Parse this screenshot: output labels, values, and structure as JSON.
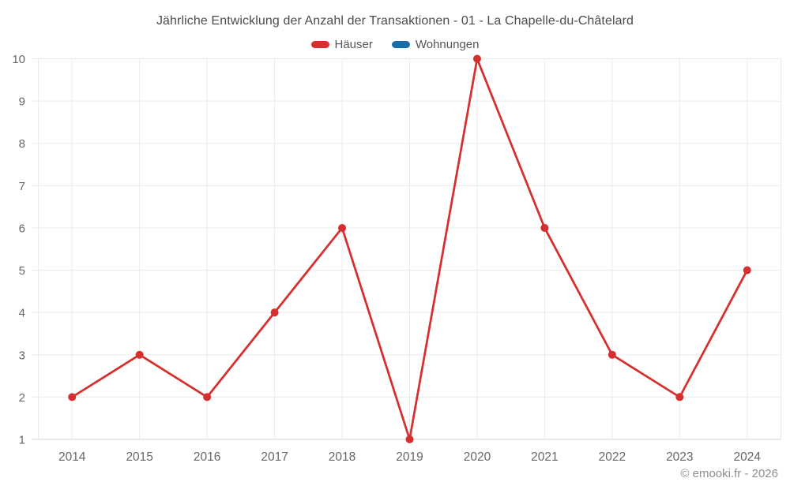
{
  "header": {
    "title": "Jährliche Entwicklung der Anzahl der Transaktionen - 01 - La Chapelle-du-Châtelard"
  },
  "legend": {
    "items": [
      {
        "label": "Häuser",
        "color": "#d62f2f"
      },
      {
        "label": "Wohnungen",
        "color": "#1a6ea8"
      }
    ]
  },
  "footer": {
    "text": "© emooki.fr - 2026"
  },
  "chart_data": {
    "type": "line",
    "title": "Jährliche Entwicklung der Anzahl der Transaktionen - 01 - La Chapelle-du-Châtelard",
    "categories": [
      "2014",
      "2015",
      "2016",
      "2017",
      "2018",
      "2019",
      "2020",
      "2021",
      "2022",
      "2023",
      "2024"
    ],
    "series": [
      {
        "name": "Häuser",
        "color": "#d62f2f",
        "values": [
          2,
          3,
          2,
          4,
          6,
          1,
          10,
          6,
          3,
          2,
          5
        ]
      },
      {
        "name": "Wohnungen",
        "color": "#1a6ea8",
        "values": []
      }
    ],
    "xlabel": "",
    "ylabel": "",
    "ylim": [
      1,
      10
    ],
    "yticks": [
      1,
      2,
      3,
      4,
      5,
      6,
      7,
      8,
      9,
      10
    ],
    "grid": true,
    "legend_position": "top",
    "colors": {
      "gridline": "#ebebeb",
      "axis_line": "#cfcfcf",
      "tick_label": "#676767"
    }
  }
}
